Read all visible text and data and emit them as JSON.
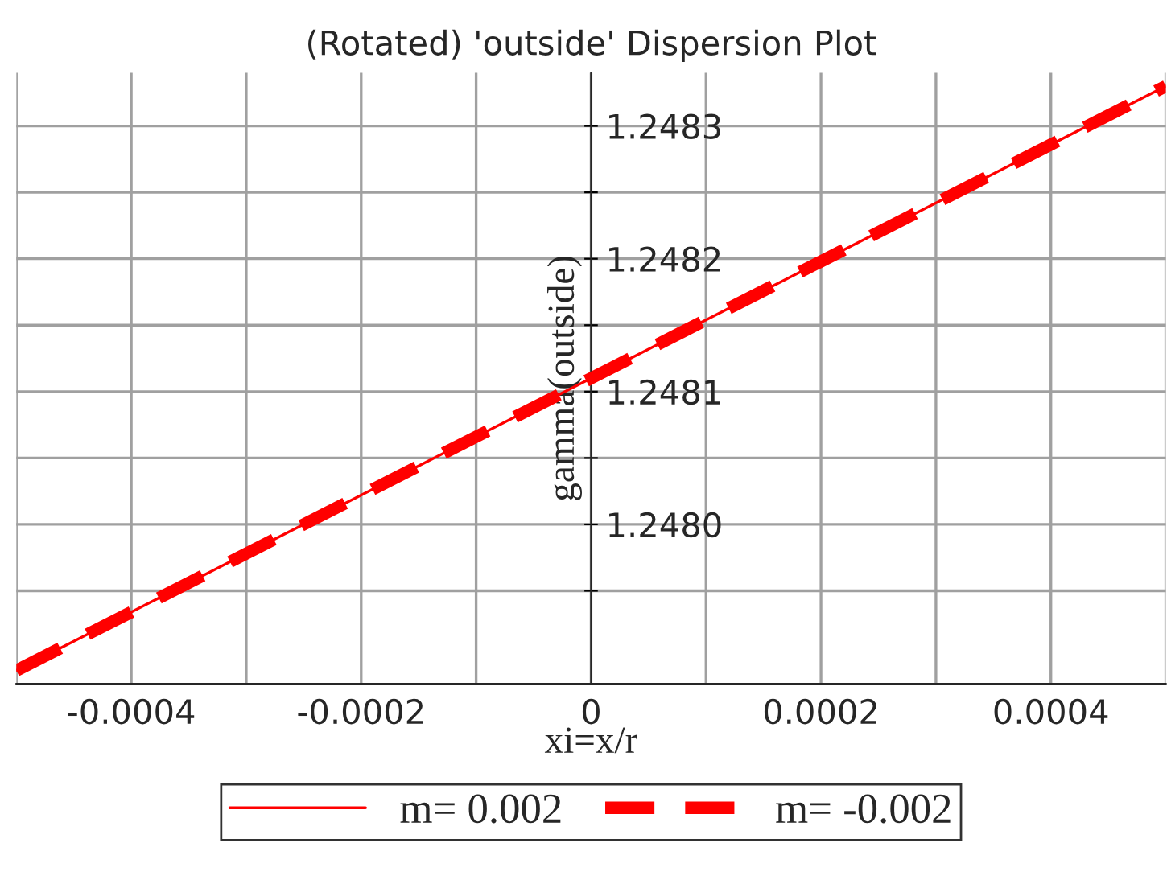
{
  "chart_data": {
    "type": "line",
    "title": "(Rotated) 'outside' Dispersion Plot",
    "xlabel": "xi=x/r",
    "ylabel": "gamma(outside)",
    "x": [
      -0.0005,
      0,
      0.0005
    ],
    "series": [
      {
        "name": "m= 0.002",
        "color": "#ff0000",
        "values": [
          1.24789,
          1.24811,
          1.24833
        ],
        "line_style": "solid"
      },
      {
        "name": "m= -0.002",
        "color": "#ff0000",
        "values": [
          1.24789,
          1.24811,
          1.24833
        ],
        "line_style": "dashed"
      }
    ],
    "xlim": [
      -0.0005,
      0.0005
    ],
    "xticks": [
      {
        "value": -0.0005,
        "label": null
      },
      -0.0004,
      {
        "value": -0.0003,
        "label": null
      },
      -0.0002,
      {
        "value": -0.0001,
        "label": null
      },
      0,
      {
        "value": 0.0001,
        "label": null
      },
      0.0002,
      {
        "value": 0.0003,
        "label": null
      },
      0.0004,
      {
        "value": 0.0005,
        "label": null
      }
    ],
    "ylim": [
      1.24788,
      1.24834
    ],
    "yticks": [
      {
        "value": 1.24795,
        "label": null
      },
      {
        "value": 1.248,
        "label": "1.2480"
      },
      {
        "value": 1.24805,
        "label": null
      },
      1.2481,
      {
        "value": 1.24815,
        "label": null
      },
      1.2482,
      {
        "value": 1.24825,
        "label": null
      },
      1.2483
    ],
    "grid": true,
    "legend": "bottom"
  }
}
